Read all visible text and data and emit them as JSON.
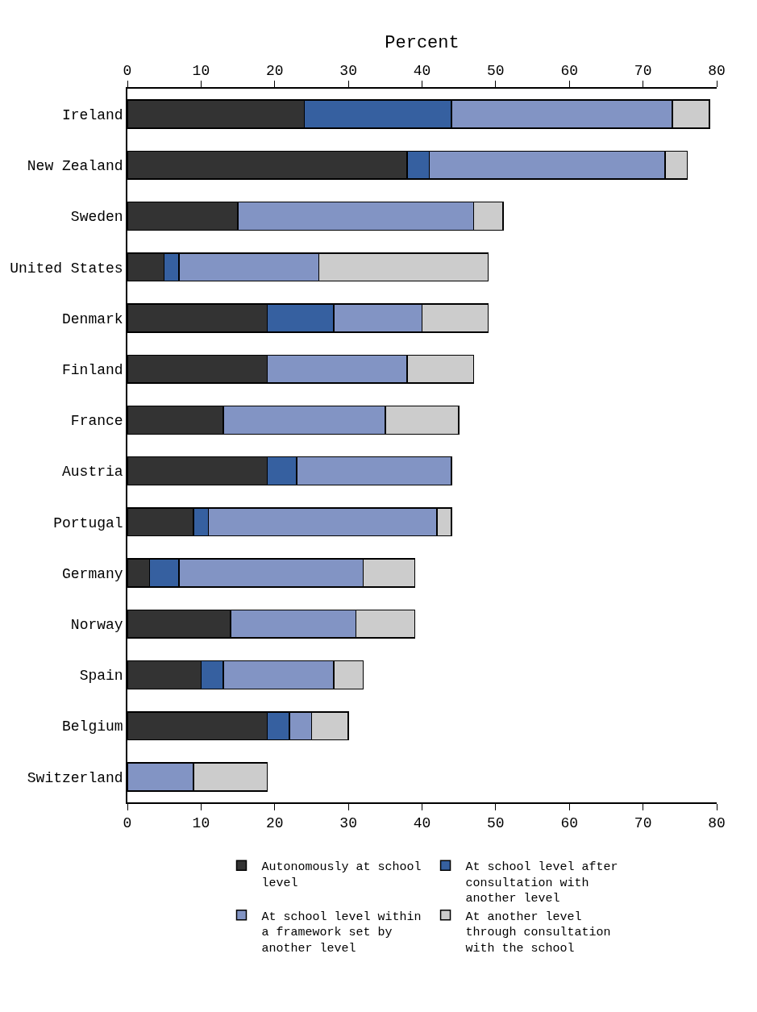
{
  "chart_data": {
    "type": "bar",
    "orientation": "horizontal",
    "stacked": true,
    "x2label": "Percent",
    "categories": [
      "Ireland",
      "New Zealand",
      "Sweden",
      "United States",
      "Denmark",
      "Finland",
      "France",
      "Austria",
      "Portugal",
      "Germany",
      "Norway",
      "Spain",
      "Belgium",
      "Switzerland"
    ],
    "series": [
      {
        "name": "Autonomously at school level",
        "color": "#333333",
        "values": [
          24,
          38,
          15,
          5,
          19,
          19,
          13,
          19,
          9,
          3,
          14,
          10,
          19,
          null
        ]
      },
      {
        "name": "At school level after consultation with another level",
        "color": "#3660a0",
        "values": [
          20,
          3,
          null,
          2,
          9,
          null,
          null,
          4,
          2,
          4,
          null,
          3,
          3,
          null
        ]
      },
      {
        "name": "At school level within a framework set by another level",
        "color": "#8294c4",
        "values": [
          30,
          32,
          32,
          19,
          12,
          19,
          22,
          21,
          31,
          25,
          17,
          15,
          3,
          9
        ]
      },
      {
        "name": "At another level through consultation with the school",
        "color": "#cccccc",
        "values": [
          5,
          3,
          4,
          23,
          9,
          9,
          10,
          null,
          2,
          7,
          8,
          4,
          5,
          10
        ]
      }
    ],
    "xlim": [
      0,
      80
    ],
    "xticks": [
      0,
      10,
      20,
      30,
      40,
      50,
      60,
      70,
      80
    ],
    "x2lim": [
      0,
      80
    ],
    "x2ticks": [
      0,
      10,
      20,
      30,
      40,
      50,
      60,
      70,
      80
    ],
    "grid": false,
    "legend": "bottom"
  }
}
